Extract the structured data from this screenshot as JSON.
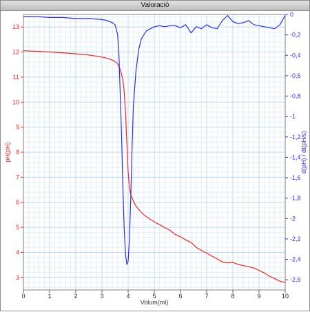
{
  "window": {
    "title": "Valoració"
  },
  "chart_data": {
    "type": "line",
    "title": "Valoració",
    "xlabel": "Volum(ml)",
    "ylabel_left": "pH(pH)",
    "ylabel_right": "d(pH) / dt(pH/s)",
    "xlim": [
      0,
      10
    ],
    "ylim_left": [
      2.5,
      13.5
    ],
    "ylim_right": [
      -2.7,
      0
    ],
    "x_ticks": [
      0,
      1,
      2,
      3,
      4,
      5,
      6,
      7,
      8,
      9,
      10
    ],
    "y_ticks_left": [
      3,
      4,
      5,
      6,
      7,
      8,
      9,
      10,
      11,
      12,
      13
    ],
    "y_ticks_right": [
      0,
      -0.2,
      -0.4,
      -0.6,
      -0.8,
      -1,
      -1.2,
      -1.4,
      -1.6,
      -1.8,
      -2,
      -2.2,
      -2.4,
      -2.6
    ],
    "y_tick_labels_right": [
      "0",
      "-0,2",
      "-0,4",
      "-0,6",
      "-0,8",
      "-1",
      "-1,2",
      "-1,4",
      "-1,6",
      "-1,8",
      "-2",
      "-2,2",
      "-2,4",
      "-2,6"
    ],
    "grid": true,
    "series": [
      {
        "color": "#ff2020",
        "axis": "left",
        "x": [
          0,
          0.5,
          1,
          1.5,
          2,
          2.5,
          3,
          3.2,
          3.4,
          3.5,
          3.6,
          3.7,
          3.8,
          3.85,
          3.9,
          3.95,
          4.0,
          4.05,
          4.1,
          4.2,
          4.3,
          4.5,
          4.7,
          5.0,
          5.3,
          5.6,
          5.8,
          6.0,
          6.2,
          6.4,
          6.6,
          6.8,
          7.0,
          7.2,
          7.4,
          7.6,
          7.8,
          8.0,
          8.2,
          8.4,
          8.6,
          8.8,
          9.0,
          9.2,
          9.4,
          9.6,
          9.8,
          10.0
        ],
        "y": [
          12.05,
          12.03,
          12.0,
          11.97,
          11.93,
          11.88,
          11.8,
          11.75,
          11.68,
          11.62,
          11.52,
          11.3,
          10.9,
          10.4,
          9.6,
          8.4,
          7.2,
          6.6,
          6.3,
          6.05,
          5.85,
          5.6,
          5.42,
          5.22,
          5.05,
          4.88,
          4.72,
          4.62,
          4.5,
          4.4,
          4.2,
          4.08,
          3.97,
          3.85,
          3.74,
          3.62,
          3.58,
          3.6,
          3.52,
          3.47,
          3.43,
          3.38,
          3.28,
          3.18,
          3.05,
          2.95,
          2.85,
          2.8
        ]
      },
      {
        "color": "#2b2bff",
        "axis": "right",
        "x": [
          0,
          0.5,
          1,
          1.5,
          2,
          2.5,
          3,
          3.2,
          3.4,
          3.5,
          3.6,
          3.65,
          3.7,
          3.75,
          3.8,
          3.85,
          3.9,
          3.95,
          4.0,
          4.05,
          4.1,
          4.15,
          4.2,
          4.3,
          4.4,
          4.5,
          4.7,
          5.0,
          5.2,
          5.4,
          5.6,
          5.8,
          6.0,
          6.2,
          6.4,
          6.6,
          6.8,
          7.0,
          7.2,
          7.4,
          7.6,
          7.8,
          8.0,
          8.2,
          8.4,
          8.6,
          8.8,
          9.0,
          9.2,
          9.4,
          9.6,
          9.8,
          10.0
        ],
        "y": [
          -0.02,
          -0.02,
          -0.03,
          -0.03,
          -0.04,
          -0.04,
          -0.05,
          -0.06,
          -0.08,
          -0.1,
          -0.2,
          -0.4,
          -0.8,
          -1.2,
          -1.7,
          -2.1,
          -2.35,
          -2.45,
          -2.42,
          -2.2,
          -1.8,
          -1.3,
          -0.9,
          -0.55,
          -0.35,
          -0.24,
          -0.16,
          -0.12,
          -0.11,
          -0.12,
          -0.11,
          -0.11,
          -0.13,
          -0.1,
          -0.18,
          -0.12,
          -0.14,
          -0.1,
          -0.13,
          -0.14,
          -0.06,
          -0.01,
          -0.07,
          -0.09,
          -0.08,
          -0.06,
          -0.1,
          -0.11,
          -0.12,
          -0.13,
          -0.14,
          -0.1,
          -0.01
        ]
      }
    ]
  }
}
